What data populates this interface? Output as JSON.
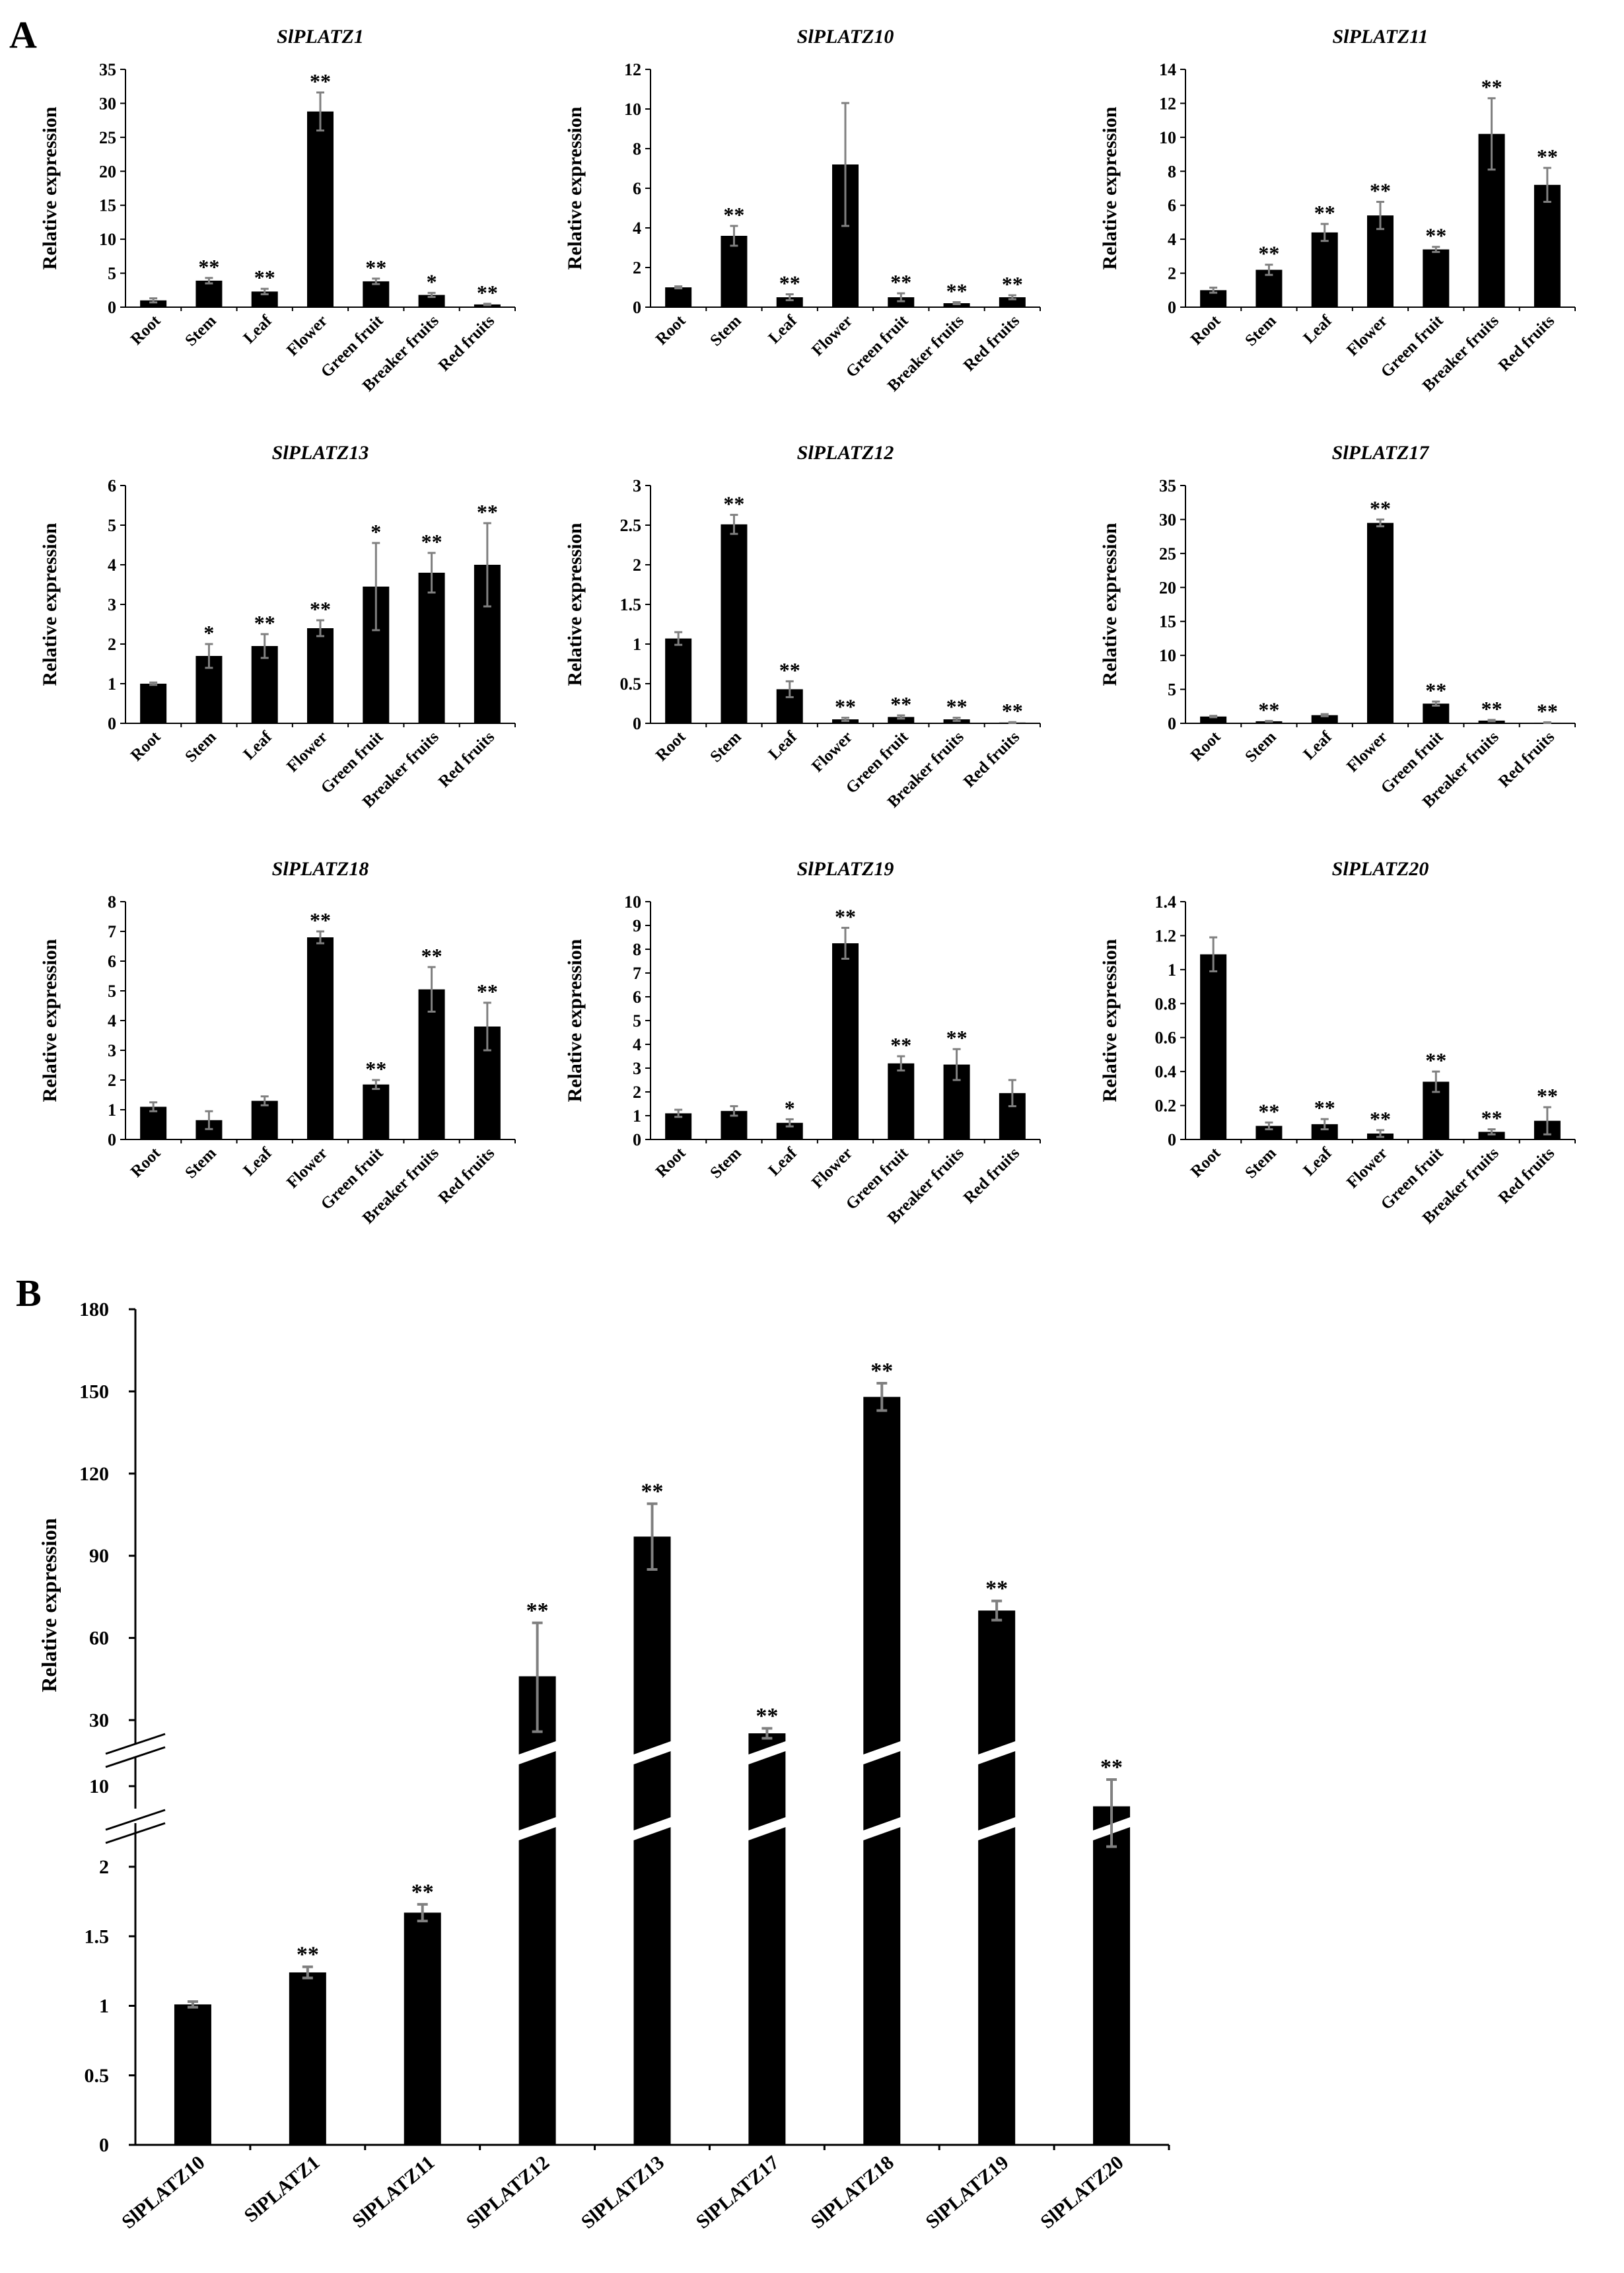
{
  "panel_labels": {
    "a": "A",
    "b": "B"
  },
  "colors": {
    "bar": "#000000",
    "error_bar": "#808080",
    "axis": "#000000",
    "background": "#ffffff"
  },
  "chart_data": [
    {
      "type": "bar",
      "title": "SlPLATZ1",
      "ylabel": "Relative expression",
      "xlabel": "",
      "categories": [
        "Root",
        "Stem",
        "Leaf",
        "Flower",
        "Green fruit",
        "Breaker fruits",
        "Red fruits"
      ],
      "values": [
        1.0,
        3.9,
        2.3,
        28.8,
        3.8,
        1.8,
        0.4
      ],
      "errors": [
        0.3,
        0.4,
        0.4,
        2.8,
        0.4,
        0.3,
        0.1
      ],
      "significance": [
        "",
        "**",
        "**",
        "**",
        "**",
        "*",
        "**"
      ],
      "ylim": [
        0,
        35
      ],
      "yticks": [
        "0",
        "5",
        "10",
        "15",
        "20",
        "25",
        "30",
        "35"
      ]
    },
    {
      "type": "bar",
      "title": "SlPLATZ10",
      "ylabel": "Relative expression",
      "xlabel": "",
      "categories": [
        "Root",
        "Stem",
        "Leaf",
        "Flower",
        "Green fruit",
        "Breaker fruits",
        "Red fruits"
      ],
      "values": [
        1.0,
        3.6,
        0.5,
        7.2,
        0.5,
        0.2,
        0.5
      ],
      "errors": [
        0.05,
        0.5,
        0.15,
        3.1,
        0.2,
        0.05,
        0.1
      ],
      "significance": [
        "",
        "**",
        "**",
        "",
        "**",
        "**",
        "**"
      ],
      "ylim": [
        0,
        12
      ],
      "yticks": [
        "0",
        "2",
        "4",
        "6",
        "8",
        "10",
        "12"
      ]
    },
    {
      "type": "bar",
      "title": "SlPLATZ11",
      "ylabel": "Relative expression",
      "xlabel": "",
      "categories": [
        "Root",
        "Stem",
        "Leaf",
        "Flower",
        "Green fruit",
        "Breaker fruits",
        "Red fruits"
      ],
      "values": [
        1.0,
        2.2,
        4.4,
        5.4,
        3.4,
        10.2,
        7.2
      ],
      "errors": [
        0.15,
        0.3,
        0.5,
        0.8,
        0.15,
        2.1,
        1.0
      ],
      "significance": [
        "",
        "**",
        "**",
        "**",
        "**",
        "**",
        "**"
      ],
      "ylim": [
        0,
        14
      ],
      "yticks": [
        "0",
        "2",
        "4",
        "6",
        "8",
        "10",
        "12",
        "14"
      ]
    },
    {
      "type": "bar",
      "title": "SlPLATZ13",
      "ylabel": "Relative expression",
      "xlabel": "",
      "categories": [
        "Root",
        "Stem",
        "Leaf",
        "Flower",
        "Green fruit",
        "Breaker fruits",
        "Red fruits"
      ],
      "values": [
        1.0,
        1.7,
        1.95,
        2.4,
        3.45,
        3.8,
        4.0
      ],
      "errors": [
        0.03,
        0.3,
        0.3,
        0.2,
        1.1,
        0.5,
        1.05
      ],
      "significance": [
        "",
        "*",
        "**",
        "**",
        "*",
        "**",
        "**"
      ],
      "ylim": [
        0,
        6
      ],
      "yticks": [
        "0",
        "1",
        "2",
        "3",
        "4",
        "5",
        "6"
      ]
    },
    {
      "type": "bar",
      "title": "SlPLATZ12",
      "ylabel": "Relative expression",
      "xlabel": "",
      "categories": [
        "Root",
        "Stem",
        "Leaf",
        "Flower",
        "Green fruit",
        "Breaker fruits",
        "Red fruits"
      ],
      "values": [
        1.07,
        2.51,
        0.43,
        0.05,
        0.08,
        0.05,
        0.01
      ],
      "errors": [
        0.08,
        0.12,
        0.1,
        0.02,
        0.02,
        0.02,
        0.005
      ],
      "significance": [
        "",
        "**",
        "**",
        "**",
        "**",
        "**",
        "**"
      ],
      "ylim": [
        0,
        3
      ],
      "yticks": [
        "0",
        "0.5",
        "1",
        "1.5",
        "2",
        "2.5",
        "3"
      ]
    },
    {
      "type": "bar",
      "title": "SlPLATZ17",
      "ylabel": "Relative expression",
      "xlabel": "",
      "categories": [
        "Root",
        "Stem",
        "Leaf",
        "Flower",
        "Green fruit",
        "Breaker fruits",
        "Red fruits"
      ],
      "values": [
        1.0,
        0.3,
        1.2,
        29.5,
        2.9,
        0.4,
        0.1
      ],
      "errors": [
        0.1,
        0.05,
        0.15,
        0.5,
        0.3,
        0.1,
        0.05
      ],
      "significance": [
        "",
        "**",
        "",
        "**",
        "**",
        "**",
        "**"
      ],
      "ylim": [
        0,
        35
      ],
      "yticks": [
        "0",
        "5",
        "10",
        "15",
        "20",
        "25",
        "30",
        "35"
      ]
    },
    {
      "type": "bar",
      "title": "SlPLATZ18",
      "ylabel": "Relative expression",
      "xlabel": "",
      "categories": [
        "Root",
        "Stem",
        "Leaf",
        "Flower",
        "Green fruit",
        "Breaker fruits",
        "Red fruits"
      ],
      "values": [
        1.1,
        0.65,
        1.3,
        6.8,
        1.85,
        5.05,
        3.8
      ],
      "errors": [
        0.15,
        0.3,
        0.15,
        0.2,
        0.15,
        0.75,
        0.8
      ],
      "significance": [
        "",
        "",
        "",
        "**",
        "**",
        "**",
        "**"
      ],
      "ylim": [
        0,
        8
      ],
      "yticks": [
        "0",
        "1",
        "2",
        "3",
        "4",
        "5",
        "6",
        "7",
        "8"
      ]
    },
    {
      "type": "bar",
      "title": "SlPLATZ19",
      "ylabel": "Relative expression",
      "xlabel": "",
      "categories": [
        "Root",
        "Stem",
        "Leaf",
        "Flower",
        "Green fruit",
        "Breaker fruits",
        "Red fruits"
      ],
      "values": [
        1.1,
        1.2,
        0.7,
        8.25,
        3.2,
        3.15,
        1.95
      ],
      "errors": [
        0.15,
        0.2,
        0.15,
        0.65,
        0.3,
        0.65,
        0.55
      ],
      "significance": [
        "",
        "",
        "*",
        "**",
        "**",
        "**",
        ""
      ],
      "ylim": [
        0,
        10
      ],
      "yticks": [
        "0",
        "1",
        "2",
        "3",
        "4",
        "5",
        "6",
        "7",
        "8",
        "9",
        "10"
      ]
    },
    {
      "type": "bar",
      "title": "SlPLATZ20",
      "ylabel": "Relative expression",
      "xlabel": "",
      "categories": [
        "Root",
        "Stem",
        "Leaf",
        "Flower",
        "Green fruit",
        "Breaker fruits",
        "Red fruits"
      ],
      "values": [
        1.09,
        0.08,
        0.09,
        0.035,
        0.34,
        0.045,
        0.11
      ],
      "errors": [
        0.1,
        0.02,
        0.03,
        0.02,
        0.06,
        0.015,
        0.08
      ],
      "significance": [
        "",
        "**",
        "**",
        "**",
        "**",
        "**",
        "**"
      ],
      "ylim": [
        0,
        1.4
      ],
      "yticks": [
        "0",
        "0.2",
        "0.4",
        "0.6",
        "0.8",
        "1",
        "1.2",
        "1.4"
      ]
    },
    {
      "type": "bar",
      "title": "",
      "ylabel": "Relative expression",
      "xlabel": "",
      "broken_axis": true,
      "categories": [
        "SlPLATZ10",
        "SlPLATZ1",
        "SlPLATZ11",
        "SlPLATZ12",
        "SlPLATZ13",
        "SlPLATZ17",
        "SlPLATZ18",
        "SlPLATZ19",
        "SlPLATZ20"
      ],
      "values": [
        1.01,
        1.24,
        1.67,
        46,
        97,
        26,
        148,
        70,
        8
      ],
      "errors": [
        0.02,
        0.04,
        0.06,
        19.5,
        12,
        1.5,
        5,
        3.5,
        4
      ],
      "significance": [
        "",
        "**",
        "**",
        "**",
        "**",
        "**",
        "**",
        "**",
        "**"
      ],
      "yticks": [
        "0",
        "0.5",
        "1",
        "1.5",
        "2",
        "10",
        "30",
        "60",
        "90",
        "120",
        "150",
        "180"
      ],
      "ylim": [
        0,
        180
      ]
    }
  ]
}
